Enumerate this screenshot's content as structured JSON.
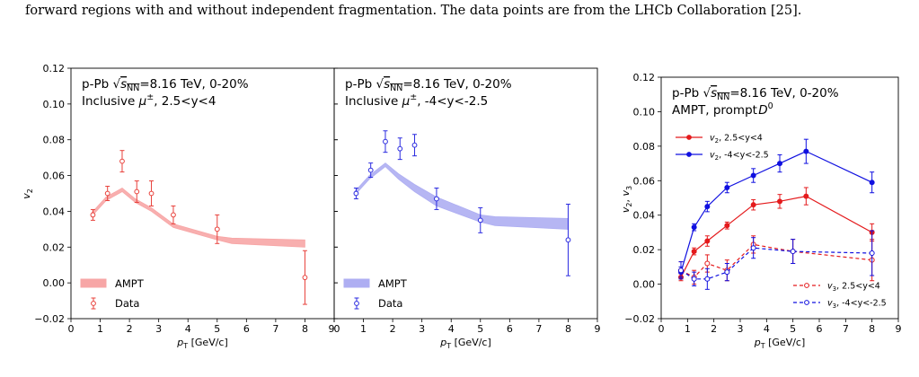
{
  "caption": "forward regions with and without independent fragmentation. The data points are from the LHCb Collaboration [25].",
  "colors": {
    "data_red": "#e8403a",
    "ampt_red_band": "#f7a6a6",
    "data_blue": "#2a2ae0",
    "ampt_blue_band": "#aeaef2",
    "v2_red": "#e41a1c",
    "v2_blue": "#1010e0"
  },
  "chart_data": [
    {
      "type": "line",
      "panel": "left",
      "title_line1_prefix": "p-Pb ",
      "title_line1_suffix": "=8.16 TeV, 0-20%",
      "sqrt_label": "s",
      "sqrt_sub": "NN",
      "title_line2": "Inclusive μ±, 2.5<y<4",
      "xlabel": "pT [GeV/c]",
      "ylabel": "v2",
      "xlim": [
        0,
        9
      ],
      "ylim": [
        -0.02,
        0.12
      ],
      "x_ticks": [
        "0",
        "1",
        "2",
        "3",
        "4",
        "5",
        "6",
        "7",
        "8",
        "9"
      ],
      "y_ticks": [
        "−0.02",
        "0.00",
        "0.02",
        "0.04",
        "0.06",
        "0.08",
        "0.10",
        "0.12"
      ],
      "legend": {
        "position": "lower-left",
        "entries": [
          "AMPT",
          "Data"
        ]
      },
      "series": [
        {
          "name": "AMPT",
          "kind": "band",
          "x": [
            0.7,
            1.2,
            1.75,
            2.2,
            2.75,
            3.5,
            5.0,
            5.5,
            8.0
          ],
          "low": [
            0.037,
            0.046,
            0.051,
            0.045,
            0.04,
            0.031,
            0.024,
            0.022,
            0.02
          ],
          "high": [
            0.039,
            0.048,
            0.053,
            0.047,
            0.042,
            0.033,
            0.026,
            0.025,
            0.024
          ]
        },
        {
          "name": "Data",
          "kind": "points",
          "x": [
            0.75,
            1.25,
            1.75,
            2.25,
            2.75,
            3.5,
            5.0,
            8.0
          ],
          "y": [
            0.038,
            0.05,
            0.068,
            0.051,
            0.05,
            0.038,
            0.03,
            0.003
          ],
          "err": [
            0.003,
            0.004,
            0.006,
            0.006,
            0.007,
            0.005,
            0.008,
            0.015
          ]
        }
      ]
    },
    {
      "type": "line",
      "panel": "middle",
      "title_line1_prefix": "p-Pb ",
      "title_line1_suffix": "=8.16 TeV, 0-20%",
      "sqrt_label": "s",
      "sqrt_sub": "NN",
      "title_line2": "Inclusive μ±, -4<y<-2.5",
      "xlabel": "pT [GeV/c]",
      "xlim": [
        0,
        9
      ],
      "ylim": [
        -0.02,
        0.12
      ],
      "x_ticks": [
        "0",
        "1",
        "2",
        "3",
        "4",
        "5",
        "6",
        "7",
        "8",
        "9"
      ],
      "legend": {
        "position": "lower-left",
        "entries": [
          "AMPT",
          "Data"
        ]
      },
      "series": [
        {
          "name": "AMPT",
          "kind": "band",
          "x": [
            0.7,
            1.2,
            1.75,
            2.2,
            2.75,
            3.5,
            5.0,
            5.5,
            8.0
          ],
          "low": [
            0.049,
            0.058,
            0.065,
            0.058,
            0.051,
            0.043,
            0.034,
            0.032,
            0.03
          ],
          "high": [
            0.051,
            0.06,
            0.067,
            0.061,
            0.055,
            0.048,
            0.038,
            0.037,
            0.036
          ]
        },
        {
          "name": "Data",
          "kind": "points",
          "x": [
            0.75,
            1.25,
            1.75,
            2.25,
            2.75,
            3.5,
            5.0,
            8.0
          ],
          "y": [
            0.05,
            0.063,
            0.079,
            0.075,
            0.077,
            0.047,
            0.035,
            0.024
          ],
          "err": [
            0.003,
            0.004,
            0.006,
            0.006,
            0.006,
            0.006,
            0.007,
            0.02
          ]
        }
      ]
    },
    {
      "type": "line",
      "panel": "right",
      "title_line1_prefix": "p-Pb ",
      "title_line1_suffix": "=8.16 TeV, 0-20%",
      "sqrt_label": "s",
      "sqrt_sub": "NN",
      "title_line2": "AMPT, prompt D0",
      "xlabel": "pT [GeV/c]",
      "ylabel": "v2, v3",
      "xlim": [
        0,
        9
      ],
      "ylim": [
        -0.02,
        0.12
      ],
      "x_ticks": [
        "0",
        "1",
        "2",
        "3",
        "4",
        "5",
        "6",
        "7",
        "8",
        "9"
      ],
      "y_ticks": [
        "−0.02",
        "0.00",
        "0.02",
        "0.04",
        "0.06",
        "0.08",
        "0.10",
        "0.12"
      ],
      "legend_top": {
        "position": "upper-left",
        "entries": [
          "v2, 2.5<y<4",
          "v2, -4<y<-2.5"
        ]
      },
      "legend_bottom": {
        "position": "lower-right",
        "entries": [
          "v3, 2.5<y<4",
          "v3, -4<y<-2.5"
        ]
      },
      "series": [
        {
          "name": "v2, 2.5<y<4",
          "kind": "line-solid",
          "x": [
            0.75,
            1.25,
            1.75,
            2.5,
            3.5,
            4.5,
            5.5,
            8.0
          ],
          "y": [
            0.004,
            0.019,
            0.025,
            0.034,
            0.046,
            0.048,
            0.051,
            0.03
          ],
          "err": [
            0.002,
            0.002,
            0.003,
            0.002,
            0.003,
            0.004,
            0.005,
            0.005
          ]
        },
        {
          "name": "v2, -4<y<-2.5",
          "kind": "line-solid",
          "x": [
            0.75,
            1.25,
            1.75,
            2.5,
            3.5,
            4.5,
            5.5,
            8.0
          ],
          "y": [
            0.007,
            0.033,
            0.045,
            0.056,
            0.063,
            0.07,
            0.077,
            0.059
          ],
          "err": [
            0.003,
            0.002,
            0.003,
            0.003,
            0.004,
            0.005,
            0.007,
            0.006
          ]
        },
        {
          "name": "v3, 2.5<y<4",
          "kind": "line-dashed",
          "x": [
            0.75,
            1.25,
            1.75,
            2.5,
            3.5,
            5.0,
            8.0
          ],
          "y": [
            0.008,
            0.004,
            0.012,
            0.008,
            0.023,
            0.019,
            0.014
          ],
          "err": [
            0.005,
            0.004,
            0.005,
            0.006,
            0.005,
            0.007,
            0.012
          ]
        },
        {
          "name": "v3, -4<y<-2.5",
          "kind": "line-dashed",
          "x": [
            0.75,
            1.25,
            1.75,
            2.5,
            3.5,
            5.0,
            8.0
          ],
          "y": [
            0.008,
            0.003,
            0.003,
            0.007,
            0.021,
            0.019,
            0.018
          ],
          "err": [
            0.005,
            0.004,
            0.006,
            0.005,
            0.006,
            0.007,
            0.013
          ]
        }
      ]
    }
  ]
}
